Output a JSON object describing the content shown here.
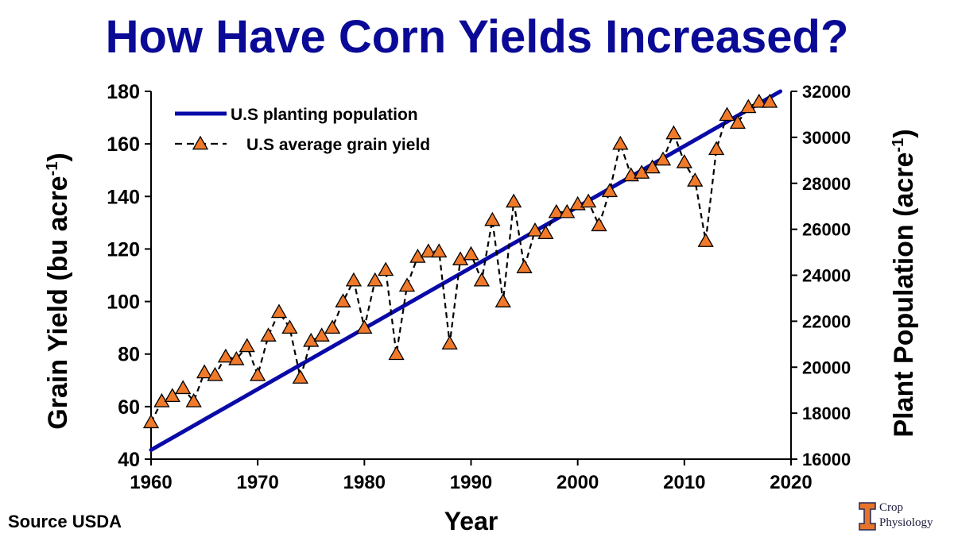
{
  "title": "How Have Corn Yields Increased?",
  "source_note": "Source USDA",
  "logo": {
    "line1": "Crop",
    "line2": "Physiology",
    "accent_color": "#e8742a",
    "navy": "#1f2a5a"
  },
  "colors": {
    "title": "#0a0a96",
    "trend_line": "#0a0aa8",
    "marker_fill": "#f07a2a",
    "marker_stroke": "#000000",
    "yield_line": "#000000"
  },
  "chart_data": {
    "type": "line",
    "title": "How Have Corn Yields Increased?",
    "xlabel": "Year",
    "ylabel": "Grain Yield (bu acre",
    "ylabel_sup": "-1",
    "ylabel_end": ")",
    "y2label": "Plant Population (acre",
    "y2label_sup": "-1",
    "y2label_end": ")",
    "xlim": [
      1960,
      2020
    ],
    "ylim": [
      40,
      180
    ],
    "y2lim": [
      16000,
      32000
    ],
    "x_ticks": [
      1960,
      1970,
      1980,
      1990,
      2000,
      2010,
      2020
    ],
    "y_ticks": [
      40,
      60,
      80,
      100,
      120,
      140,
      160,
      180
    ],
    "y2_ticks": [
      16000,
      18000,
      20000,
      22000,
      24000,
      26000,
      28000,
      30000,
      32000
    ],
    "grid": false,
    "legend_position": "top-left",
    "series": [
      {
        "name": "U.S planting population",
        "axis": "right",
        "style": "solid",
        "x": [
          1960,
          2019
        ],
        "y": [
          16400,
          32000
        ]
      },
      {
        "name": "U.S average grain yield",
        "axis": "left",
        "style": "dashed-triangle",
        "x": [
          1960,
          1961,
          1962,
          1963,
          1964,
          1965,
          1966,
          1967,
          1968,
          1969,
          1970,
          1971,
          1972,
          1973,
          1974,
          1975,
          1976,
          1977,
          1978,
          1979,
          1980,
          1981,
          1982,
          1983,
          1984,
          1985,
          1986,
          1987,
          1988,
          1989,
          1990,
          1991,
          1992,
          1993,
          1994,
          1995,
          1996,
          1997,
          1998,
          1999,
          2000,
          2001,
          2002,
          2003,
          2004,
          2005,
          2006,
          2007,
          2008,
          2009,
          2010,
          2011,
          2012,
          2013,
          2014,
          2015,
          2016,
          2017,
          2018
        ],
        "y": [
          54,
          62,
          64,
          67,
          62,
          73,
          72,
          79,
          78,
          83,
          72,
          87,
          96,
          90,
          71,
          85,
          87,
          90,
          100,
          108,
          90,
          108,
          112,
          80,
          106,
          117,
          119,
          119,
          84,
          116,
          118,
          108,
          131,
          100,
          138,
          113,
          127,
          126,
          134,
          134,
          137,
          138,
          129,
          142,
          160,
          148,
          149,
          151,
          154,
          164,
          153,
          146,
          123,
          158,
          171,
          168,
          174,
          176,
          176
        ]
      }
    ]
  }
}
